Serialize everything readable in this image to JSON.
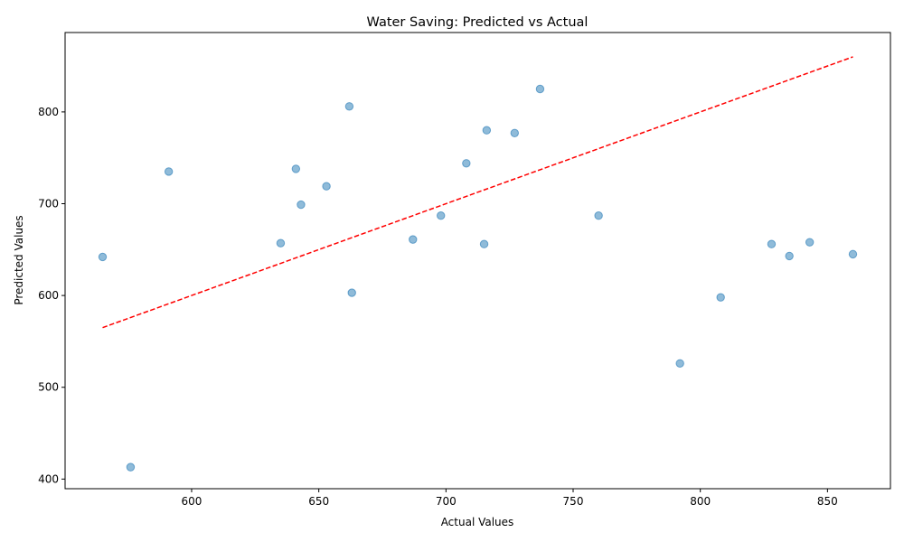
{
  "chart_data": {
    "type": "scatter",
    "title": "Water Saving: Predicted vs Actual",
    "xlabel": "Actual Values",
    "ylabel": "Predicted Values",
    "xlim": [
      565,
      860
    ],
    "ylim": [
      390,
      880
    ],
    "xticks": [
      600,
      650,
      700,
      750,
      800,
      850
    ],
    "yticks": [
      400,
      500,
      600,
      700,
      800
    ],
    "grid": false,
    "point_color": "#1f77b4",
    "reference_line": {
      "color": "#ff0000",
      "style": "dashed",
      "from": [
        565,
        565
      ],
      "to": [
        860,
        860
      ]
    },
    "points": [
      {
        "x": 565,
        "y": 642
      },
      {
        "x": 576,
        "y": 413
      },
      {
        "x": 591,
        "y": 735
      },
      {
        "x": 635,
        "y": 657
      },
      {
        "x": 641,
        "y": 738
      },
      {
        "x": 643,
        "y": 699
      },
      {
        "x": 653,
        "y": 719
      },
      {
        "x": 662,
        "y": 806
      },
      {
        "x": 663,
        "y": 603
      },
      {
        "x": 687,
        "y": 661
      },
      {
        "x": 698,
        "y": 687
      },
      {
        "x": 708,
        "y": 744
      },
      {
        "x": 715,
        "y": 656
      },
      {
        "x": 716,
        "y": 780
      },
      {
        "x": 727,
        "y": 777
      },
      {
        "x": 737,
        "y": 825
      },
      {
        "x": 760,
        "y": 687
      },
      {
        "x": 792,
        "y": 526
      },
      {
        "x": 808,
        "y": 598
      },
      {
        "x": 828,
        "y": 656
      },
      {
        "x": 835,
        "y": 643
      },
      {
        "x": 843,
        "y": 658
      },
      {
        "x": 860,
        "y": 645
      }
    ]
  }
}
